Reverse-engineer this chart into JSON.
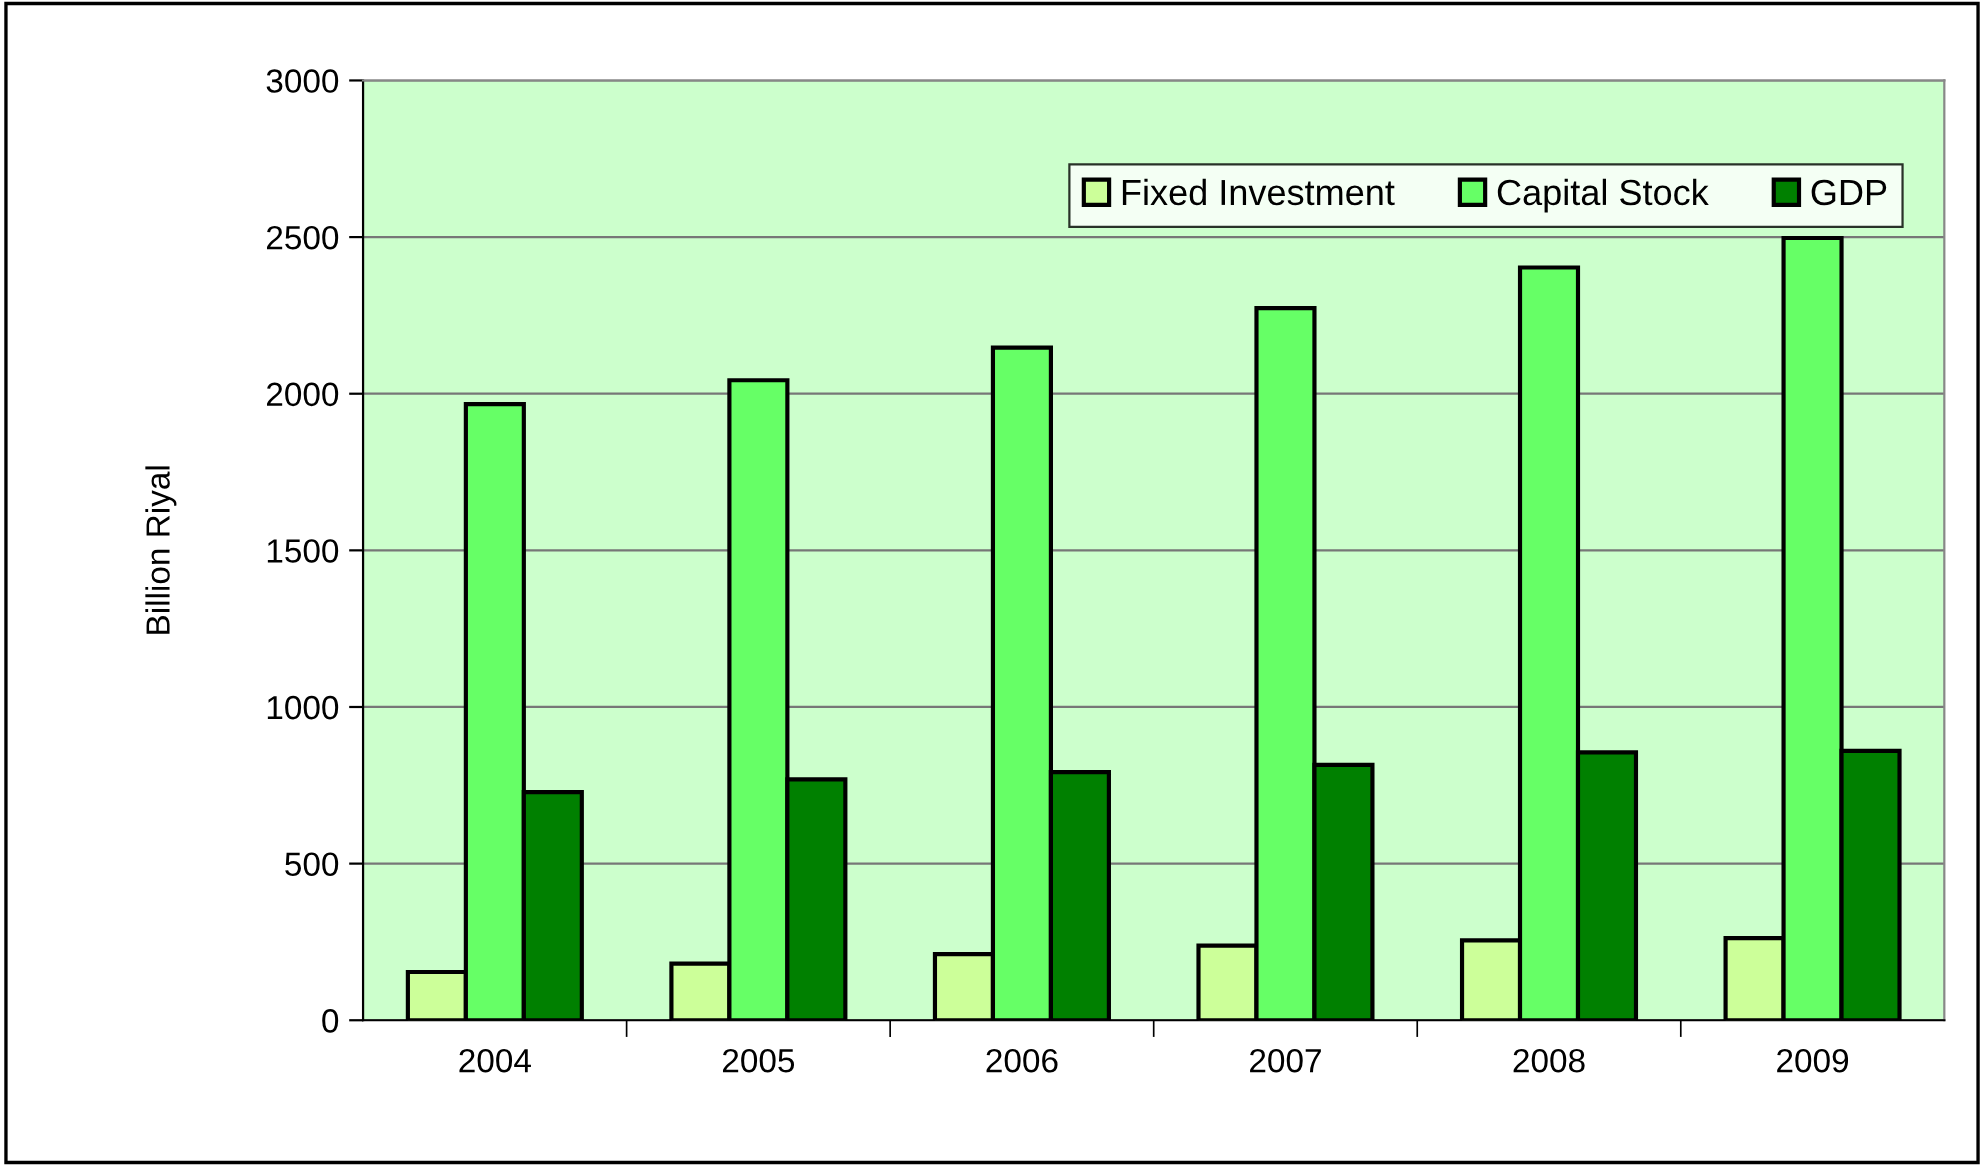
{
  "chart_data": {
    "type": "bar",
    "ylabel": "Billion Riyal",
    "categories": [
      "2004",
      "2005",
      "2006",
      "2007",
      "2008",
      "2009"
    ],
    "series": [
      {
        "name": "Fixed Investment",
        "color": "#ccff99",
        "values": [
          154,
          181,
          211,
          238,
          255,
          262
        ]
      },
      {
        "name": "Capital Stock",
        "color": "#66ff66",
        "values": [
          1967,
          2043,
          2147,
          2273,
          2403,
          2497
        ]
      },
      {
        "name": "GDP",
        "color": "#008000",
        "values": [
          728,
          769,
          792,
          815,
          855,
          860
        ]
      }
    ],
    "ylim": [
      0,
      3000
    ],
    "yticks": [
      0,
      500,
      1000,
      1500,
      2000,
      2500,
      3000
    ],
    "grid": "y",
    "legend": "top right"
  }
}
